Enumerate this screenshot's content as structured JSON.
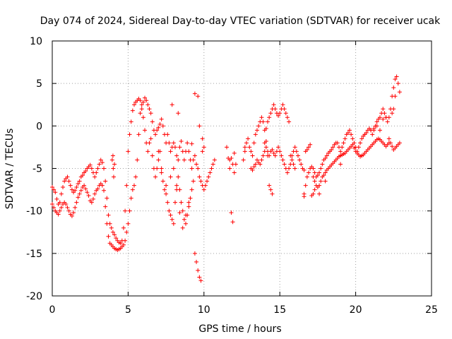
{
  "chart_data": {
    "type": "scatter",
    "title": "Day 074 of 2024, Sidereal Day-to-day VTEC variation (SDTVAR) for receiver ucak",
    "xlabel": "GPS time / hours",
    "ylabel": "SDTVAR / TECUs",
    "xlim": [
      0,
      25
    ],
    "ylim": [
      -20,
      10
    ],
    "xticks": [
      0,
      5,
      10,
      15,
      20,
      25
    ],
    "yticks": [
      -20,
      -15,
      -10,
      -5,
      0,
      5,
      10
    ],
    "grid": true,
    "marker": "+",
    "color": "#ff0000",
    "series": [
      {
        "name": "SDTVAR",
        "x": [
          0.0,
          0.1,
          0.2,
          0.3,
          0.4,
          0.5,
          0.6,
          0.7,
          0.8,
          0.9,
          1.0,
          1.1,
          1.2,
          1.3,
          1.4,
          1.5,
          1.6,
          1.7,
          1.8,
          1.9,
          2.0,
          2.1,
          2.2,
          2.3,
          2.4,
          2.5,
          2.6,
          2.7,
          2.8,
          2.9,
          3.0,
          3.1,
          3.2,
          3.3,
          3.4,
          3.5,
          3.6,
          3.7,
          3.8,
          3.9,
          4.0,
          4.1,
          4.2,
          4.3,
          4.4,
          4.5,
          4.6,
          4.7,
          4.8,
          4.9,
          5.0,
          5.1,
          5.2,
          5.3,
          5.4,
          5.5,
          5.6,
          5.7,
          5.8,
          5.9,
          6.0,
          6.1,
          6.2,
          6.3,
          6.4,
          6.5,
          6.6,
          6.7,
          6.8,
          6.9,
          7.0,
          7.1,
          7.2,
          7.3,
          7.4,
          7.5,
          7.6,
          7.7,
          7.8,
          7.9,
          8.0,
          8.1,
          8.2,
          8.3,
          8.4,
          8.5,
          8.6,
          8.7,
          8.8,
          8.9,
          9.0,
          9.1,
          9.2,
          9.3,
          9.4,
          9.5,
          9.6,
          9.7,
          9.8,
          9.9,
          10.0,
          10.1,
          10.2,
          10.3,
          10.4,
          10.5,
          10.6,
          10.7,
          0.0,
          0.1,
          0.2,
          0.3,
          0.4,
          0.5,
          0.6,
          0.7,
          0.8,
          0.9,
          1.0,
          1.1,
          1.2,
          1.3,
          1.4,
          1.5,
          1.6,
          1.7,
          1.8,
          1.9,
          2.0,
          2.1,
          2.2,
          2.3,
          2.4,
          2.5,
          2.6,
          2.7,
          2.8,
          2.9,
          3.0,
          3.1,
          3.2,
          3.3,
          3.4,
          3.5,
          3.6,
          3.7,
          3.8,
          3.9,
          4.0,
          4.1,
          4.2,
          4.3,
          4.4,
          4.5,
          4.6,
          4.7,
          4.8,
          4.9,
          5.0,
          5.1,
          5.2,
          5.3,
          5.4,
          5.5,
          5.6,
          5.7,
          5.8,
          5.9,
          6.0,
          6.1,
          6.2,
          6.3,
          6.4,
          6.5,
          6.6,
          6.7,
          6.8,
          6.9,
          7.0,
          7.1,
          7.2,
          7.3,
          7.4,
          7.5,
          7.6,
          7.7,
          7.8,
          7.9,
          8.0,
          8.1,
          8.2,
          8.3,
          8.4,
          8.5,
          8.6,
          8.7,
          8.8,
          8.9,
          9.0,
          9.1,
          9.2,
          9.3,
          9.4,
          9.5,
          9.6,
          9.7,
          9.8,
          9.9,
          10.0,
          3.95,
          4.0,
          4.02,
          4.05,
          4.1,
          7.0,
          7.2,
          7.5,
          7.8,
          8.0,
          8.2,
          8.4,
          8.6,
          8.8,
          9.0,
          9.2,
          9.4,
          9.6,
          7.9,
          8.3,
          9.7,
          9.9,
          11.5,
          11.6,
          11.7,
          11.8,
          11.9,
          12.0,
          11.8,
          11.9,
          12.0,
          11.7,
          12.1,
          12.6,
          12.7,
          12.7,
          12.8,
          12.9,
          13.0,
          13.1,
          13.2,
          13.3,
          13.4,
          13.5,
          13.6,
          13.7,
          13.8,
          13.9,
          14.0,
          14.1,
          14.2,
          14.3,
          14.4,
          14.5,
          14.6,
          14.7,
          14.8,
          14.9,
          15.0,
          15.1,
          15.2,
          15.3,
          15.4,
          15.5,
          15.6,
          15.7,
          15.8,
          15.9,
          16.0,
          13.1,
          13.2,
          13.3,
          13.4,
          13.5,
          13.6,
          13.7,
          13.8,
          13.9,
          14.0,
          14.1,
          14.2,
          14.3,
          14.4,
          14.5,
          14.6,
          14.7,
          14.8,
          14.9,
          15.0,
          15.1,
          15.2,
          15.3,
          15.4,
          15.5,
          15.6,
          15.7,
          15.8,
          15.9,
          16.0,
          16.1,
          16.2,
          16.3,
          16.4,
          16.5,
          16.6,
          16.7,
          16.8,
          16.9,
          17.0,
          14.0,
          14.1,
          14.2,
          14.3,
          14.4,
          14.5,
          16.6,
          16.6,
          16.7,
          16.8,
          16.9,
          17.0,
          17.1,
          17.2,
          17.3,
          17.4,
          17.5,
          17.6,
          17.7,
          17.8,
          17.9,
          18.0,
          18.1,
          18.2,
          18.3,
          18.4,
          18.5,
          18.6,
          18.7,
          18.8,
          18.9,
          19.0,
          19.1,
          19.2,
          19.3,
          19.4,
          19.5,
          19.6,
          19.7,
          19.8,
          19.9,
          20.0,
          20.1,
          20.2,
          20.3,
          20.4,
          20.5,
          20.6,
          20.7,
          20.8,
          20.9,
          21.0,
          21.1,
          21.2,
          21.3,
          21.4,
          21.5,
          21.6,
          21.7,
          21.8,
          21.9,
          22.0,
          22.1,
          22.2,
          22.3,
          22.4,
          22.5,
          22.6,
          22.7,
          22.8,
          22.9,
          17.2,
          17.3,
          17.4,
          17.5,
          17.6,
          17.7,
          17.8,
          17.9,
          18.0,
          18.1,
          18.2,
          18.3,
          18.4,
          18.5,
          18.6,
          18.7,
          18.8,
          18.9,
          19.0,
          19.1,
          19.2,
          19.3,
          19.4,
          19.5,
          19.6,
          19.7,
          19.8,
          19.9,
          20.0,
          20.1,
          20.2,
          20.3,
          20.4,
          20.5,
          20.6,
          20.7,
          20.8,
          20.9,
          21.0,
          21.1,
          21.2,
          21.3,
          21.4,
          21.5,
          21.6,
          21.7,
          21.8,
          21.9,
          22.0,
          22.1,
          22.2,
          22.3,
          22.4,
          22.5,
          22.6,
          22.7,
          22.8,
          22.9,
          17.1,
          17.2,
          17.3,
          17.6,
          18.0,
          19.0,
          20.6,
          21.0,
          21.2,
          21.4,
          21.6,
          21.8,
          22.0,
          22.2,
          22.4,
          22.5,
          22.6
        ],
        "y": [
          -7.2,
          -7.5,
          -7.8,
          -8.6,
          -9.2,
          -9.0,
          -8.0,
          -7.2,
          -6.5,
          -6.2,
          -6.0,
          -6.5,
          -7.0,
          -7.5,
          -7.8,
          -7.6,
          -7.2,
          -6.8,
          -6.5,
          -6.0,
          -5.8,
          -5.5,
          -5.3,
          -5.0,
          -4.8,
          -4.6,
          -5.0,
          -5.5,
          -6.0,
          -5.5,
          -5.0,
          -4.5,
          -4.0,
          -4.3,
          -5.0,
          -6.5,
          -8.5,
          -10.5,
          -11.5,
          -12.0,
          -12.5,
          -12.8,
          -13.2,
          -13.5,
          -13.7,
          -13.8,
          -13.5,
          -12.0,
          -10.0,
          -7.0,
          -3.0,
          -1.0,
          0.5,
          1.8,
          2.5,
          2.8,
          3.0,
          3.2,
          3.0,
          2.5,
          2.8,
          3.3,
          3.0,
          2.5,
          2.0,
          1.5,
          0.5,
          -0.5,
          -1.0,
          -0.5,
          -0.2,
          0.2,
          0.8,
          0.0,
          -1.0,
          -2.0,
          -1.0,
          -2.0,
          -3.0,
          -2.5,
          -2.0,
          -2.5,
          -3.5,
          -4.0,
          -2.5,
          -1.8,
          -3.0,
          -4.0,
          -3.0,
          -2.0,
          -3.0,
          -4.0,
          -5.0,
          -4.0,
          -3.5,
          -4.5,
          -5.0,
          -6.0,
          -6.5,
          -7.0,
          -7.5,
          -7.0,
          -6.5,
          -6.0,
          -5.5,
          -5.0,
          -4.5,
          -4.0,
          -9.2,
          -9.6,
          -10.0,
          -10.2,
          -10.4,
          -10.0,
          -9.6,
          -9.2,
          -9.0,
          -9.2,
          -9.6,
          -10.0,
          -10.4,
          -10.6,
          -10.2,
          -9.6,
          -9.0,
          -8.4,
          -8.0,
          -7.6,
          -7.2,
          -7.0,
          -7.4,
          -7.8,
          -8.2,
          -8.8,
          -9.0,
          -8.6,
          -8.0,
          -7.6,
          -7.4,
          -7.0,
          -6.8,
          -7.0,
          -7.6,
          -9.5,
          -11.5,
          -13.0,
          -13.8,
          -14.0,
          -14.2,
          -14.4,
          -14.5,
          -14.6,
          -14.5,
          -14.4,
          -14.2,
          -14.0,
          -13.5,
          -12.5,
          -11.5,
          -10.0,
          -8.5,
          -7.5,
          -7.0,
          -6.0,
          -4.0,
          -1.0,
          1.5,
          2.0,
          1.0,
          -0.5,
          -2.0,
          -3.0,
          -2.0,
          -1.5,
          -3.5,
          -5.0,
          -6.0,
          -5.0,
          -4.0,
          -3.0,
          -5.0,
          -6.5,
          -7.5,
          -8.0,
          -9.0,
          -10.0,
          -10.5,
          -11.0,
          -11.5,
          -9.0,
          -7.0,
          -6.0,
          -7.5,
          -9.0,
          -10.0,
          -11.0,
          -11.5,
          -10.5,
          -9.5,
          -8.5,
          -7.5,
          -6.5,
          -15.0,
          -16.0,
          -17.0,
          -17.8,
          -18.2,
          -3.0,
          -2.5,
          -4.0,
          -3.5,
          -5.0,
          -6.0,
          -4.5,
          -3.0,
          -5.5,
          -7.0,
          -6.0,
          -5.0,
          -7.5,
          -10.2,
          -12.0,
          -10.5,
          -9.0,
          -2.1,
          3.8,
          3.5,
          2.5,
          1.5,
          0.0,
          -1.5,
          -2.5,
          -3.8,
          -4.0,
          -10.2,
          -11.3,
          -3.2,
          -3.8,
          -4.5,
          -5.5,
          -5.0,
          -4.5,
          -4.0,
          -3.0,
          -2.5,
          -2.0,
          -1.5,
          -2.5,
          -3.0,
          -3.5,
          -2.0,
          -1.0,
          -0.5,
          0.0,
          0.5,
          1.0,
          0.5,
          -0.5,
          -0.3,
          0.5,
          1.0,
          1.5,
          2.0,
          2.5,
          2.0,
          1.5,
          1.2,
          1.5,
          2.0,
          2.5,
          2.0,
          1.5,
          1.0,
          0.5,
          -3.5,
          -4.0,
          -4.5,
          -5.0,
          -5.0,
          -5.2,
          -4.8,
          -4.5,
          -4.0,
          -4.3,
          -4.5,
          -4.0,
          -3.5,
          -3.0,
          -2.5,
          -3.0,
          -3.5,
          -3.0,
          -2.8,
          -3.2,
          -3.5,
          -3.0,
          -2.5,
          -3.0,
          -3.5,
          -4.0,
          -4.5,
          -5.0,
          -5.5,
          -5.0,
          -4.5,
          -3.5,
          -3.0,
          -2.5,
          -3.0,
          -3.5,
          -4.0,
          -4.5,
          -5.0,
          -5.2,
          -3.0,
          -2.8,
          -2.5,
          -2.2,
          -2.0,
          -1.8,
          -3.5,
          -7.0,
          -7.5,
          -8.0,
          -8.3,
          -8.0,
          -7.0,
          -6.0,
          -5.5,
          -5.0,
          -4.8,
          -5.0,
          -5.5,
          -6.0,
          -5.8,
          -5.5,
          -5.0,
          -4.5,
          -4.0,
          -3.8,
          -3.5,
          -3.2,
          -3.0,
          -2.8,
          -2.5,
          -2.2,
          -2.0,
          -2.0,
          -2.5,
          -3.0,
          -2.5,
          -2.0,
          -1.5,
          -1.0,
          -0.8,
          -0.5,
          -1.0,
          -1.5,
          -2.0,
          -2.5,
          -3.0,
          -2.5,
          -2.0,
          -1.5,
          -1.2,
          -1.0,
          -0.8,
          -0.5,
          -0.3,
          -0.5,
          -1.0,
          -0.5,
          0.0,
          0.5,
          0.8,
          1.0,
          1.5,
          2.0,
          1.5,
          1.0,
          0.5,
          1.0,
          2.0,
          3.5,
          4.5,
          5.5,
          5.8,
          5.0,
          4.0,
          -6.0,
          -6.5,
          -7.0,
          -7.2,
          -7.0,
          -6.5,
          -6.0,
          -5.8,
          -5.5,
          -5.2,
          -5.0,
          -4.8,
          -4.6,
          -4.4,
          -4.2,
          -4.0,
          -3.8,
          -3.6,
          -3.5,
          -3.4,
          -3.3,
          -3.2,
          -3.0,
          -2.8,
          -2.6,
          -2.4,
          -2.2,
          -2.6,
          -3.0,
          -3.2,
          -3.4,
          -3.6,
          -3.5,
          -3.4,
          -3.2,
          -3.0,
          -2.8,
          -2.6,
          -2.4,
          -2.2,
          -2.0,
          -1.8,
          -1.6,
          -1.5,
          -1.6,
          -1.8,
          -2.0,
          -2.2,
          -2.4,
          -2.2,
          -2.0,
          -2.0,
          -2.4,
          -2.8,
          -2.6,
          -2.4,
          -2.2,
          -2.0,
          -8.2,
          -8.0,
          -7.5,
          -8.0,
          -6.5,
          -4.5,
          -1.0,
          -0.5,
          -0.3,
          0.0,
          -0.5,
          0.8,
          1.0,
          -1.5,
          1.5,
          2.0,
          3.5
        ]
      }
    ]
  }
}
